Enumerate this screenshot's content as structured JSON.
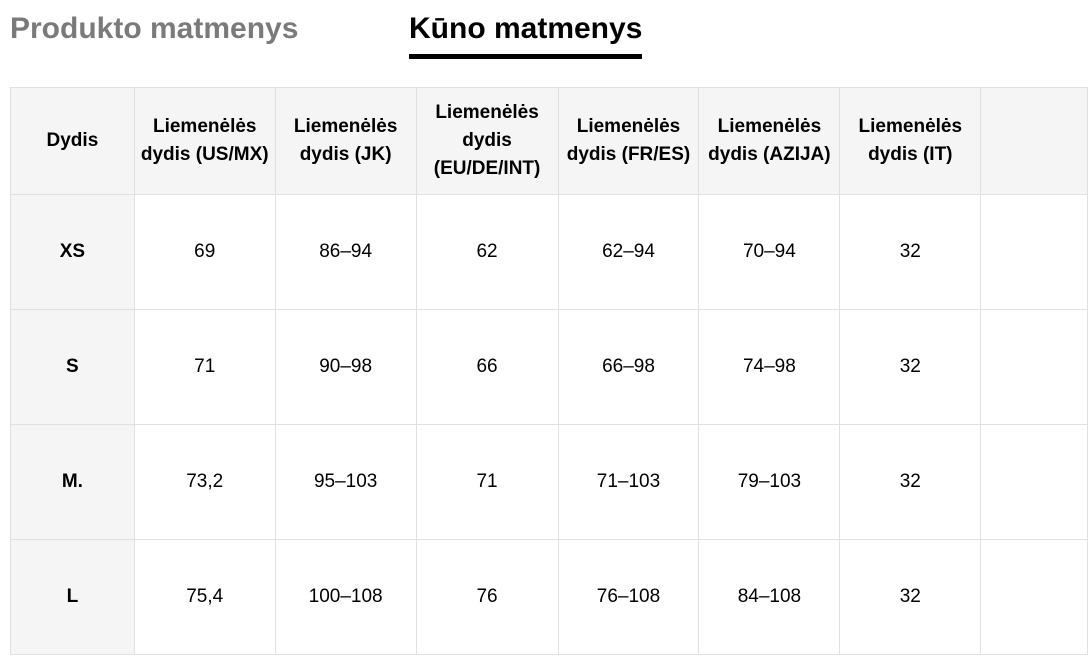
{
  "tabs": [
    {
      "label": "Produkto matmenys",
      "active": false
    },
    {
      "label": "Kūno matmenys",
      "active": true
    }
  ],
  "table": {
    "headers": [
      "Dydis",
      "Liemenėlės dydis (US/MX)",
      "Liemenėlės dydis (JK)",
      "Liemenėlės dydis (EU/DE/INT)",
      "Liemenėlės dydis (FR/ES)",
      "Liemenėlės dydis (AZIJA)",
      "Liemenėlės dydis (IT)",
      ""
    ],
    "rows": [
      [
        "XS",
        "69",
        "86–94",
        "62",
        "62–94",
        "70–94",
        "32",
        ""
      ],
      [
        "S",
        "71",
        "90–98",
        "66",
        "66–98",
        "74–98",
        "32",
        ""
      ],
      [
        "M.",
        "73,2",
        "95–103",
        "71",
        "71–103",
        "79–103",
        "32",
        ""
      ],
      [
        "L",
        "75,4",
        "100–108",
        "76",
        "76–108",
        "84–108",
        "32",
        ""
      ]
    ]
  }
}
